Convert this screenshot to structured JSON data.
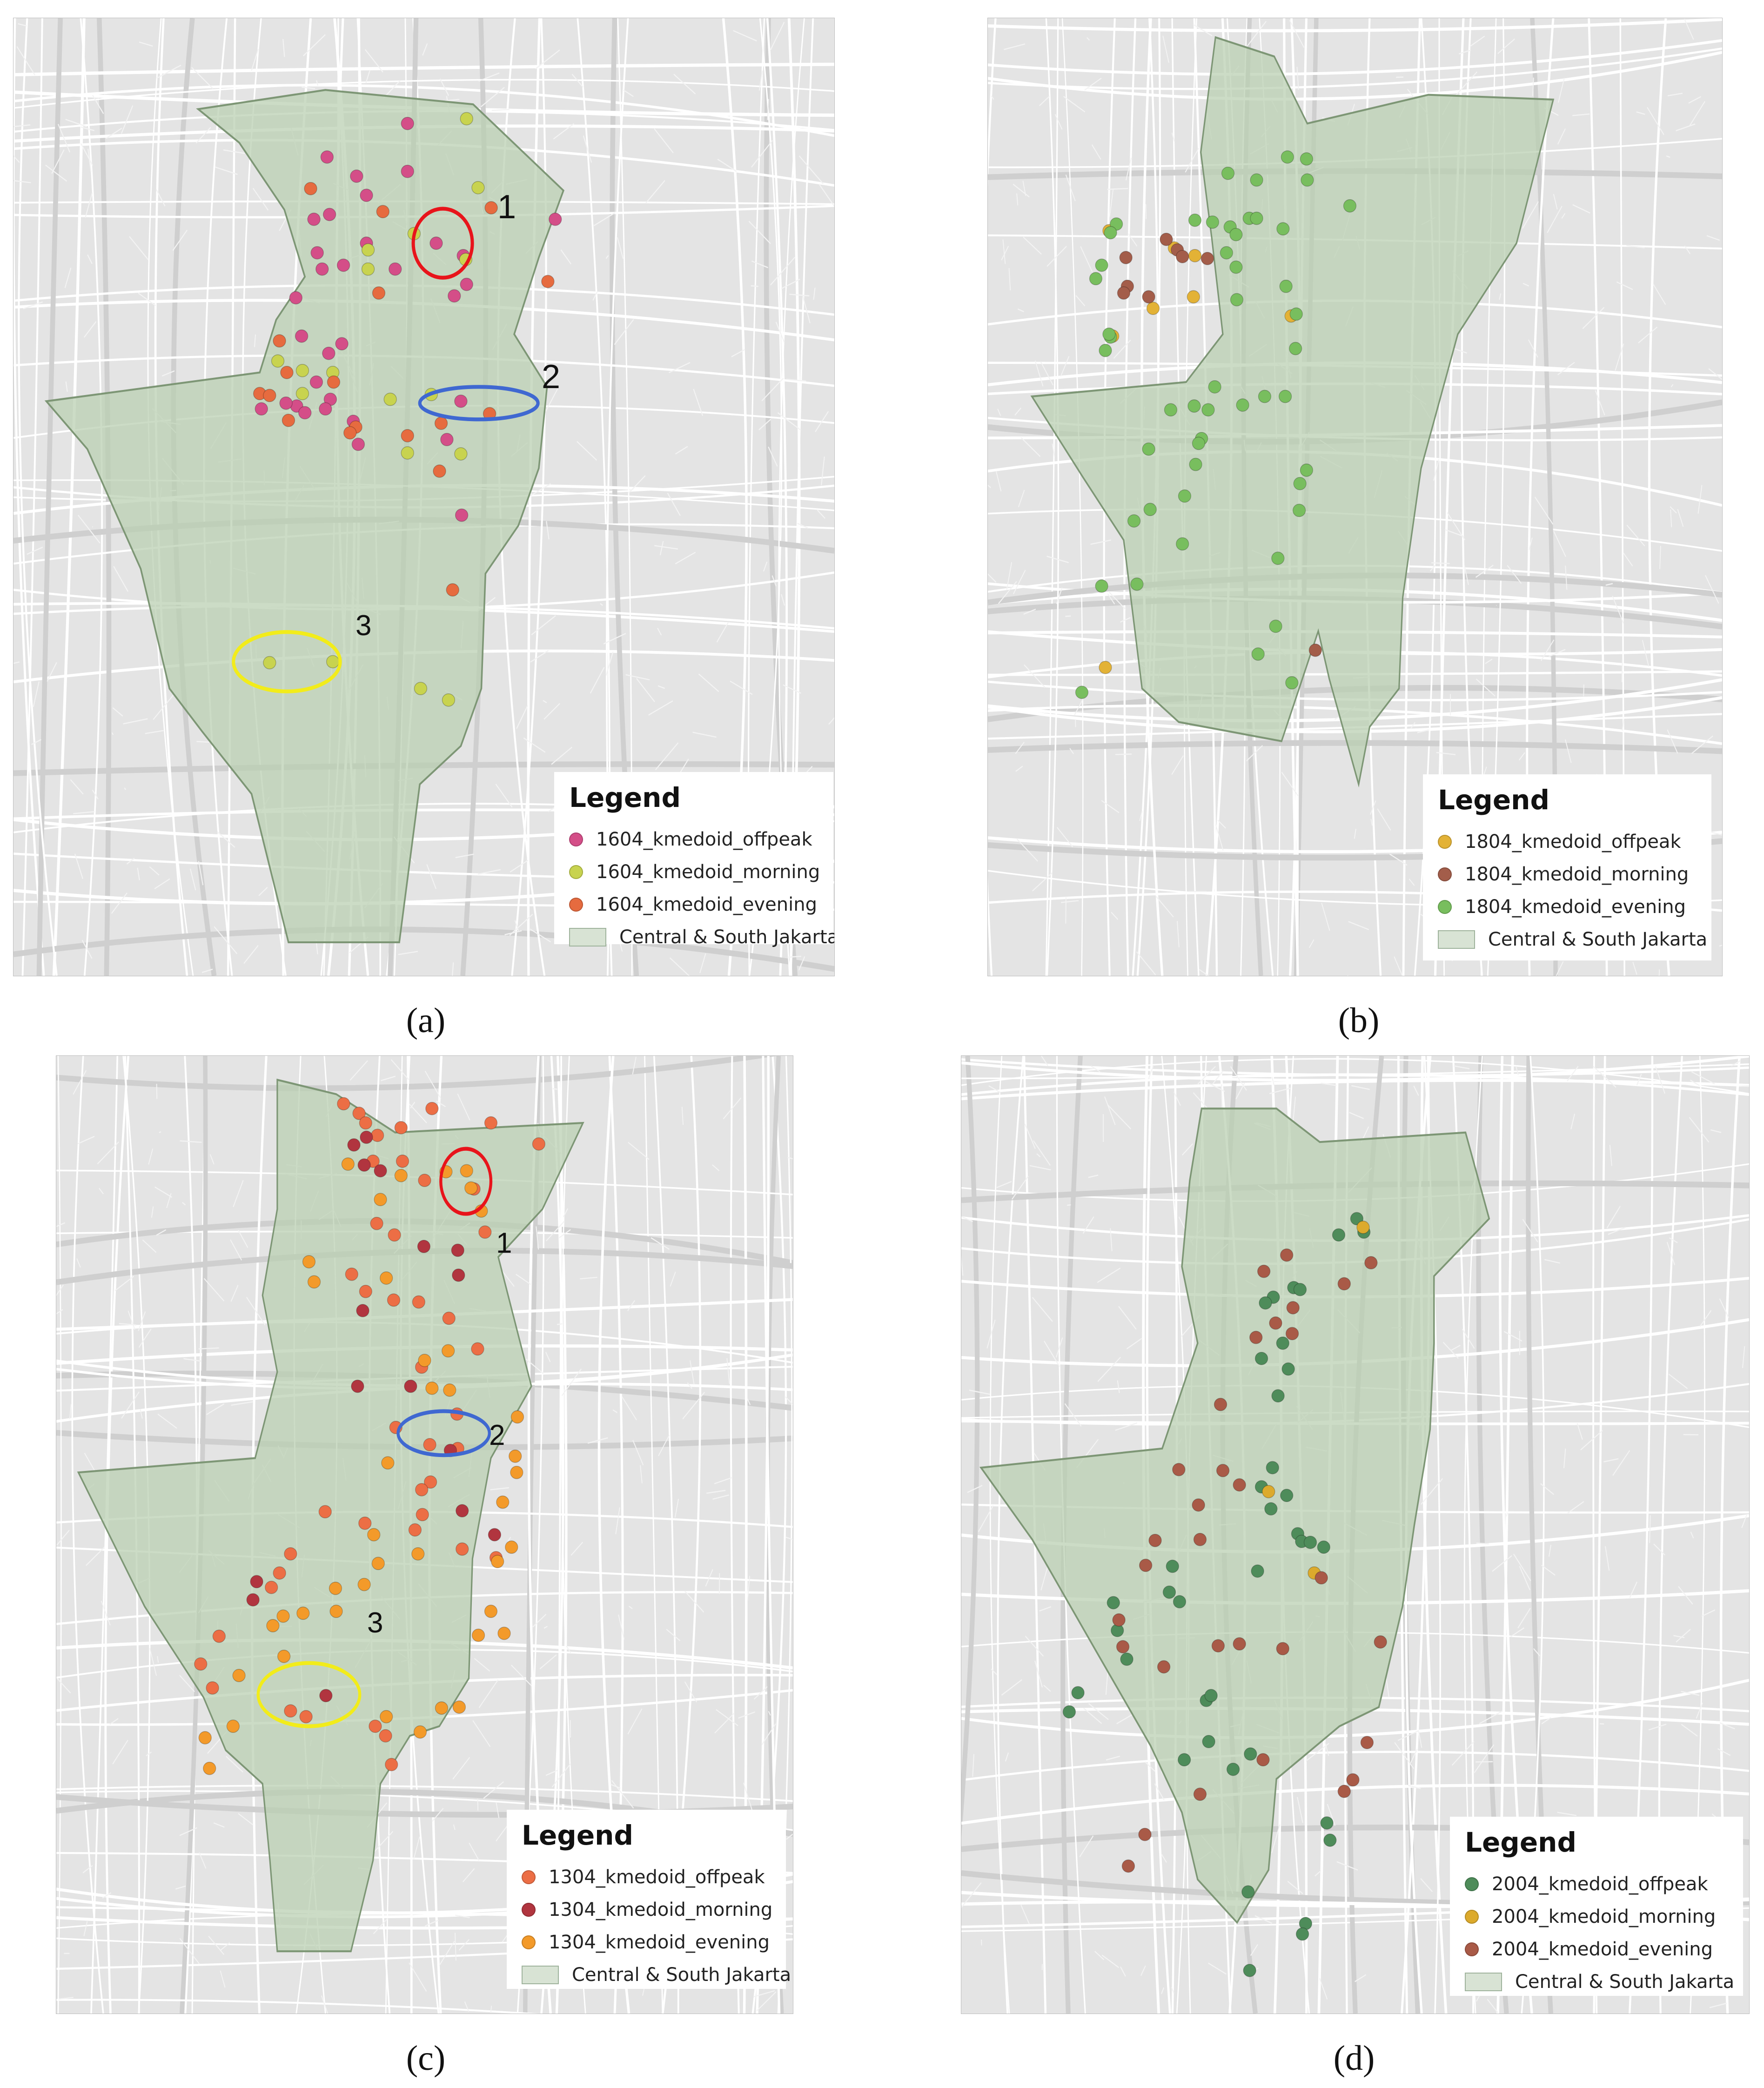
{
  "colors": {
    "region_fill": "#b9ceb0",
    "region_stroke": "#7d9675",
    "map_bg": "#e4e4e4",
    "road": "#ffffff",
    "road_major": "#cfcfcf",
    "highlight_red": "#e8141b",
    "highlight_blue": "#3f68d1",
    "highlight_yellow": "#f2ec1a"
  },
  "panels": [
    {
      "id": "a",
      "caption": "(a)",
      "legend": {
        "title": "Legend",
        "items": [
          {
            "label": "1604_kmedoid_offpeak",
            "color": "#d44e88"
          },
          {
            "label": "1604_kmedoid_morning",
            "color": "#c8d34f"
          },
          {
            "label": "1604_kmedoid_evening",
            "color": "#e66b3f"
          }
        ],
        "area_label": "Central & South Jakarta"
      },
      "annotations": [
        "1",
        "2",
        "3"
      ]
    },
    {
      "id": "b",
      "caption": "(b)",
      "legend": {
        "title": "Legend",
        "items": [
          {
            "label": "1804_kmedoid_offpeak",
            "color": "#e3b236"
          },
          {
            "label": "1804_kmedoid_morning",
            "color": "#a35d4a"
          },
          {
            "label": "1804_kmedoid_evening",
            "color": "#78be5e"
          }
        ],
        "area_label": "Central & South Jakarta"
      },
      "annotations": []
    },
    {
      "id": "c",
      "caption": "(c)",
      "legend": {
        "title": "Legend",
        "items": [
          {
            "label": "1304_kmedoid_offpeak",
            "color": "#ec6e45"
          },
          {
            "label": "1304_kmedoid_morning",
            "color": "#b1353f"
          },
          {
            "label": "1304_kmedoid_evening",
            "color": "#f39a2a"
          }
        ],
        "area_label": "Central & South Jakarta"
      },
      "annotations": [
        "1",
        "2",
        "3"
      ]
    },
    {
      "id": "d",
      "caption": "(d)",
      "legend": {
        "title": "Legend",
        "items": [
          {
            "label": "2004_kmedoid_offpeak",
            "color": "#4e8c5a"
          },
          {
            "label": "2004_kmedoid_morning",
            "color": "#dcaa2c"
          },
          {
            "label": "2004_kmedoid_evening",
            "color": "#a95a47"
          }
        ],
        "area_label": "Central & South Jakarta"
      },
      "annotations": []
    }
  ]
}
